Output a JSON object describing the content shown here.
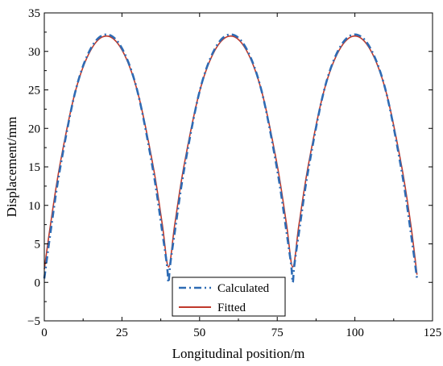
{
  "chart_data": {
    "type": "line",
    "xlabel": "Longitudinal position/m",
    "ylabel": "Displacement/mm",
    "xlim": [
      0,
      125
    ],
    "ylim": [
      -5,
      35
    ],
    "xticks": [
      0,
      25,
      50,
      75,
      100,
      125
    ],
    "yticks": [
      -5,
      0,
      5,
      10,
      15,
      20,
      25,
      30,
      35
    ],
    "grid": false,
    "legend_position": "bottom-center",
    "series": [
      {
        "name": "Calculated",
        "style": "dash-dot",
        "color": "#2e6bb4",
        "x": [
          0,
          2,
          5,
          10,
          15,
          20,
          25,
          30,
          35,
          38,
          39.5,
          40,
          40.5,
          42,
          45,
          50,
          55,
          60,
          65,
          70,
          75,
          78,
          79.5,
          80,
          80.5,
          82,
          85,
          90,
          95,
          100,
          105,
          110,
          115,
          118,
          120
        ],
        "y": [
          0.5,
          6.5,
          14.6,
          24.8,
          30.4,
          32.2,
          30.4,
          24.8,
          14.6,
          6.5,
          2.2,
          0.0,
          2.2,
          6.5,
          14.6,
          24.8,
          30.4,
          32.2,
          30.4,
          24.8,
          14.6,
          6.5,
          2.2,
          0.0,
          2.2,
          6.5,
          14.6,
          24.8,
          30.4,
          32.2,
          30.4,
          24.8,
          14.6,
          6.5,
          0.5
        ]
      },
      {
        "name": "Fitted",
        "style": "solid",
        "color": "#c0392b",
        "x": [
          0,
          2,
          5,
          10,
          15,
          20,
          25,
          30,
          35,
          38,
          40,
          42,
          45,
          50,
          55,
          60,
          65,
          70,
          75,
          78,
          80,
          82,
          85,
          90,
          95,
          100,
          105,
          110,
          115,
          118,
          120
        ],
        "y": [
          1.7,
          7.5,
          15.2,
          24.8,
          30.2,
          32.0,
          30.2,
          24.8,
          15.2,
          7.5,
          2.0,
          7.5,
          15.2,
          24.8,
          30.2,
          32.0,
          30.2,
          24.8,
          15.2,
          7.5,
          2.0,
          7.5,
          15.2,
          24.8,
          30.2,
          32.0,
          30.2,
          24.8,
          15.2,
          7.5,
          1.0
        ]
      }
    ]
  }
}
